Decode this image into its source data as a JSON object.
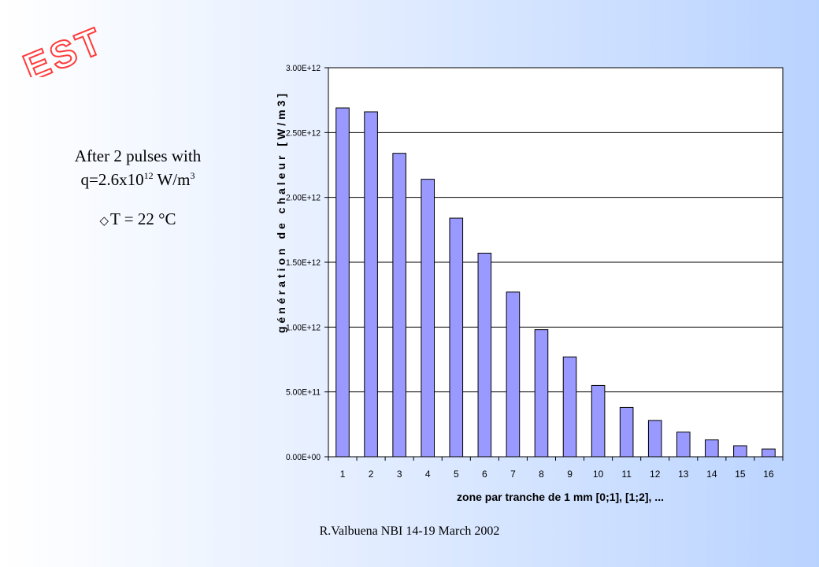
{
  "logo": {
    "text": "EST",
    "color": "#ff3b3b"
  },
  "annotation": {
    "line1": "After 2 pulses with",
    "line2_prefix": "q=2.6x10",
    "line2_exp": "12",
    "line2_unit": " W/m",
    "line2_unit_exp": "3",
    "line3_glyph": "delta-icon",
    "line3_text": "T = 22 °C"
  },
  "footer": "R.Valbuena NBI 14-19 March 2002",
  "chart_data": {
    "type": "bar",
    "title": "",
    "xlabel": "zone par tranche de 1 mm [0;1], [1;2], ...",
    "ylabel": "génération de chaleur [W/m3]",
    "categories": [
      "1",
      "2",
      "3",
      "4",
      "5",
      "6",
      "7",
      "8",
      "9",
      "10",
      "11",
      "12",
      "13",
      "14",
      "15",
      "16"
    ],
    "values": [
      2690000000000.0,
      2660000000000.0,
      2340000000000.0,
      2140000000000.0,
      1840000000000.0,
      1570000000000.0,
      1270000000000.0,
      980000000000.0,
      770000000000.0,
      550000000000.0,
      380000000000.0,
      280000000000.0,
      190000000000.0,
      130000000000.0,
      85000000000.0,
      60000000000.0
    ],
    "ylim": [
      0,
      3000000000000.0
    ],
    "yticks": [
      0,
      500000000000.0,
      1000000000000.0,
      1500000000000.0,
      2000000000000.0,
      2500000000000.0,
      3000000000000.0
    ],
    "ytick_labels": [
      "0.00E+00",
      "5.00E+11",
      "1.00E+12",
      "1.50E+12",
      "2.00E+12",
      "2.50E+12",
      "3.00E+12"
    ],
    "grid": true,
    "bar_color": "#9999ff",
    "plot_background": "#ffffff"
  }
}
